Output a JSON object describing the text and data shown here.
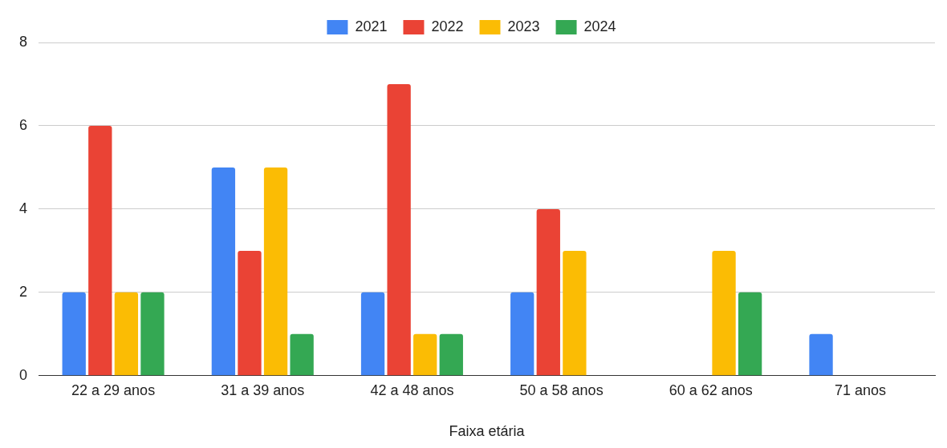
{
  "chart_data": {
    "type": "bar",
    "xlabel": "Faixa etária",
    "categories": [
      "22 a 29 anos",
      "31 a 39 anos",
      "42 a 48 anos",
      "50 a 58 anos",
      "60 a 62 anos",
      "71 anos"
    ],
    "series": [
      {
        "name": "2021",
        "color": "#4285f4",
        "values": [
          2,
          5,
          2,
          2,
          0,
          1
        ]
      },
      {
        "name": "2022",
        "color": "#ea4335",
        "values": [
          6,
          3,
          7,
          4,
          0,
          0
        ]
      },
      {
        "name": "2023",
        "color": "#fbbc04",
        "values": [
          2,
          5,
          1,
          3,
          3,
          0
        ]
      },
      {
        "name": "2024",
        "color": "#34a853",
        "values": [
          2,
          1,
          1,
          0,
          2,
          0
        ]
      }
    ],
    "ylim": [
      0,
      8
    ],
    "yticks": [
      0,
      2,
      4,
      6,
      8
    ],
    "grid": "y",
    "legend": "top"
  }
}
